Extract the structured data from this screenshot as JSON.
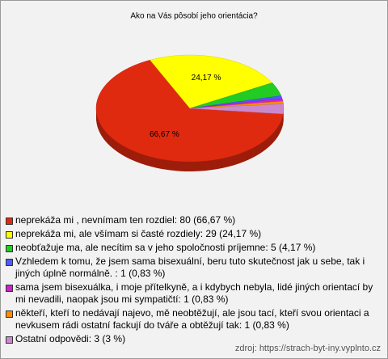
{
  "chart_data": {
    "type": "pie",
    "title": "Ako na Vás pôsobí jeho orientácia?",
    "categories": [
      "neprekáža mi , nevnímam ten rozdiel: 80 (66,67 %)",
      "neprekáža mi, ale všímam si časté rozdiely: 29 (24,17 %)",
      "neobťažuje ma, ale necítim sa v jeho spoločnosti príjemne: 5 (4,17 %)",
      "Vzhledem k tomu, že jsem sama bisexuální, beru tuto skutečnost jak u sebe, tak i jiných úplně normálně. : 1 (0,83 %)",
      "sama jsem bisexuálka, i moje přítelkyně, a i kdybych nebyla, lidé jiných orientací by mi nevadili, naopak jsou mi sympatičtí: 1 (0,83 %)",
      "někteří, kteří to nedávají najevo, mě neobtěžují, ale jsou tací, kteří svou orientaci a nevkusem rádi ostatní fackují do tváře a obtěžují tak: 1 (0,83 %)",
      "Ostatní odpovědi: 3 (3 %)"
    ],
    "values": [
      66.67,
      24.17,
      4.17,
      0.83,
      0.83,
      0.83,
      3
    ],
    "value_labels": [
      "66,67 %",
      "24,17 %",
      null,
      null,
      null,
      null,
      null
    ],
    "colors": [
      "#e02a10",
      "#ffff00",
      "#22cc22",
      "#4d5cff",
      "#cc22cc",
      "#ff8c00",
      "#cc88cc"
    ],
    "source": "zdroj: https://strach-byt-iny.vyplnto.cz"
  }
}
